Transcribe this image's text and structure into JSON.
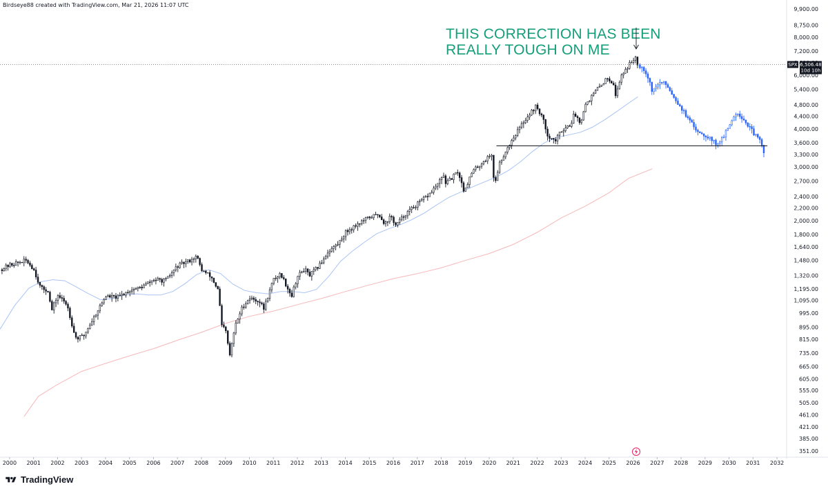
{
  "header": {
    "caption": "Birdseye88 created with TradingView.com, Mar 21, 2026 11:07 UTC"
  },
  "footer": {
    "brand": "TradingView"
  },
  "price_tag": {
    "symbol": "SPX",
    "price": "6,506.48",
    "countdown": "10d 10h",
    "value": 6506.48
  },
  "annotation": {
    "line1": "THIS CORRECTION HAS BEEN",
    "line2": "REALLY TOUGH ON ME"
  },
  "colors": {
    "candle_hist": "#131722",
    "candle_proj": "#2962ff",
    "ma_fast": "#a9c4f5",
    "ma_slow": "#f7b7b9",
    "annotation": "#159e7a",
    "support": "#131722"
  },
  "chart_data": {
    "type": "candlestick",
    "symbol": "SPX",
    "y_scale": "log",
    "ylim": [
      340,
      9900
    ],
    "xlim": [
      1999.6,
      2032.4
    ],
    "y_ticks": [
      "9,900.00",
      "8,750.00",
      "8,000.00",
      "7,200.00",
      "6,600.00",
      "6,000.00",
      "5,400.00",
      "4,800.00",
      "4,400.00",
      "4,000.00",
      "3,600.00",
      "3,300.00",
      "3,000.00",
      "2,700.00",
      "2,400.00",
      "2,200.00",
      "2,000.00",
      "1,800.00",
      "1,640.00",
      "1,480.00",
      "1,320.00",
      "1,195.00",
      "1,095.00",
      "995.00",
      "895.00",
      "815.00",
      "735.00",
      "665.00",
      "605.00",
      "555.00",
      "505.00",
      "461.00",
      "421.00",
      "385.00",
      "351.00"
    ],
    "x_ticks": [
      "2000",
      "2001",
      "2002",
      "2003",
      "2004",
      "2005",
      "2006",
      "2007",
      "2008",
      "2009",
      "2010",
      "2011",
      "2012",
      "2013",
      "2014",
      "2015",
      "2016",
      "2017",
      "2018",
      "2019",
      "2020",
      "2021",
      "2022",
      "2023",
      "2024",
      "2025",
      "2026",
      "2027",
      "2028",
      "2029",
      "2030",
      "2031",
      "2032"
    ],
    "price_path": [
      [
        1999.6,
        1380
      ],
      [
        2000.0,
        1430
      ],
      [
        2000.4,
        1460
      ],
      [
        2000.7,
        1480
      ],
      [
        2001.0,
        1390
      ],
      [
        2001.3,
        1200
      ],
      [
        2001.6,
        1180
      ],
      [
        2001.75,
        1010
      ],
      [
        2002.0,
        1140
      ],
      [
        2002.4,
        1060
      ],
      [
        2002.7,
        850
      ],
      [
        2002.8,
        820
      ],
      [
        2003.1,
        840
      ],
      [
        2003.3,
        900
      ],
      [
        2003.6,
        990
      ],
      [
        2004.0,
        1130
      ],
      [
        2004.5,
        1120
      ],
      [
        2005.0,
        1180
      ],
      [
        2005.5,
        1210
      ],
      [
        2006.0,
        1280
      ],
      [
        2006.5,
        1270
      ],
      [
        2007.0,
        1420
      ],
      [
        2007.5,
        1480
      ],
      [
        2007.8,
        1530
      ],
      [
        2008.0,
        1380
      ],
      [
        2008.4,
        1310
      ],
      [
        2008.7,
        1180
      ],
      [
        2008.85,
        900
      ],
      [
        2009.0,
        880
      ],
      [
        2009.18,
        720
      ],
      [
        2009.4,
        900
      ],
      [
        2009.7,
        1040
      ],
      [
        2010.0,
        1115
      ],
      [
        2010.4,
        1090
      ],
      [
        2010.6,
        1030
      ],
      [
        2011.0,
        1280
      ],
      [
        2011.3,
        1340
      ],
      [
        2011.6,
        1200
      ],
      [
        2011.75,
        1130
      ],
      [
        2012.0,
        1310
      ],
      [
        2012.3,
        1390
      ],
      [
        2012.5,
        1320
      ],
      [
        2012.9,
        1420
      ],
      [
        2013.3,
        1590
      ],
      [
        2013.7,
        1680
      ],
      [
        2014.0,
        1830
      ],
      [
        2014.5,
        1950
      ],
      [
        2015.0,
        2050
      ],
      [
        2015.4,
        2100
      ],
      [
        2015.65,
        1950
      ],
      [
        2015.9,
        2070
      ],
      [
        2016.1,
        1930
      ],
      [
        2016.5,
        2100
      ],
      [
        2016.9,
        2230
      ],
      [
        2017.5,
        2440
      ],
      [
        2017.95,
        2700
      ],
      [
        2018.1,
        2820
      ],
      [
        2018.2,
        2640
      ],
      [
        2018.7,
        2900
      ],
      [
        2018.95,
        2500
      ],
      [
        2019.3,
        2900
      ],
      [
        2019.9,
        3200
      ],
      [
        2020.1,
        3300
      ],
      [
        2020.22,
        2580
      ],
      [
        2020.4,
        3050
      ],
      [
        2020.7,
        3400
      ],
      [
        2021.0,
        3750
      ],
      [
        2021.5,
        4300
      ],
      [
        2021.95,
        4750
      ],
      [
        2022.2,
        4400
      ],
      [
        2022.45,
        3800
      ],
      [
        2022.75,
        3650
      ],
      [
        2023.0,
        3950
      ],
      [
        2023.4,
        4150
      ],
      [
        2023.55,
        4500
      ],
      [
        2023.8,
        4200
      ],
      [
        2024.0,
        4800
      ],
      [
        2024.5,
        5400
      ],
      [
        2024.95,
        5900
      ],
      [
        2025.2,
        5600
      ],
      [
        2025.28,
        5100
      ],
      [
        2025.5,
        6000
      ],
      [
        2025.9,
        6600
      ],
      [
        2026.1,
        6900
      ],
      [
        2026.2,
        6506
      ]
    ],
    "projection_path": [
      [
        2026.2,
        6506
      ],
      [
        2026.45,
        6300
      ],
      [
        2026.65,
        5850
      ],
      [
        2026.8,
        5300
      ],
      [
        2026.95,
        5500
      ],
      [
        2027.15,
        5700
      ],
      [
        2027.4,
        5600
      ],
      [
        2027.7,
        5100
      ],
      [
        2028.0,
        4700
      ],
      [
        2028.3,
        4300
      ],
      [
        2028.6,
        4000
      ],
      [
        2028.9,
        3850
      ],
      [
        2029.2,
        3750
      ],
      [
        2029.45,
        3570
      ],
      [
        2029.7,
        3700
      ],
      [
        2029.95,
        4000
      ],
      [
        2030.15,
        4350
      ],
      [
        2030.35,
        4550
      ],
      [
        2030.6,
        4300
      ],
      [
        2030.85,
        4050
      ],
      [
        2031.1,
        3800
      ],
      [
        2031.3,
        3650
      ],
      [
        2031.45,
        3380
      ]
    ],
    "ma_fast_path": [
      [
        1999.6,
        880
      ],
      [
        2000.2,
        1050
      ],
      [
        2000.8,
        1200
      ],
      [
        2001.3,
        1260
      ],
      [
        2001.8,
        1280
      ],
      [
        2002.3,
        1270
      ],
      [
        2002.8,
        1210
      ],
      [
        2003.3,
        1150
      ],
      [
        2003.8,
        1100
      ],
      [
        2004.3,
        1110
      ],
      [
        2004.8,
        1140
      ],
      [
        2005.3,
        1150
      ],
      [
        2005.8,
        1140
      ],
      [
        2006.3,
        1140
      ],
      [
        2006.8,
        1170
      ],
      [
        2007.3,
        1240
      ],
      [
        2007.8,
        1330
      ],
      [
        2008.3,
        1380
      ],
      [
        2008.8,
        1340
      ],
      [
        2009.3,
        1240
      ],
      [
        2009.8,
        1180
      ],
      [
        2010.3,
        1160
      ],
      [
        2010.8,
        1150
      ],
      [
        2011.3,
        1170
      ],
      [
        2011.8,
        1170
      ],
      [
        2012.3,
        1160
      ],
      [
        2012.8,
        1190
      ],
      [
        2013.3,
        1310
      ],
      [
        2013.8,
        1470
      ],
      [
        2014.3,
        1590
      ],
      [
        2014.8,
        1700
      ],
      [
        2015.3,
        1810
      ],
      [
        2015.8,
        1880
      ],
      [
        2016.3,
        1940
      ],
      [
        2016.8,
        2020
      ],
      [
        2017.3,
        2120
      ],
      [
        2017.8,
        2250
      ],
      [
        2018.3,
        2380
      ],
      [
        2018.8,
        2480
      ],
      [
        2019.3,
        2580
      ],
      [
        2019.8,
        2680
      ],
      [
        2020.3,
        2780
      ],
      [
        2020.8,
        2920
      ],
      [
        2021.3,
        3120
      ],
      [
        2021.8,
        3370
      ],
      [
        2022.3,
        3600
      ],
      [
        2022.8,
        3750
      ],
      [
        2023.3,
        3820
      ],
      [
        2023.8,
        3900
      ],
      [
        2024.3,
        4050
      ],
      [
        2024.8,
        4280
      ],
      [
        2025.3,
        4550
      ],
      [
        2025.8,
        4850
      ],
      [
        2026.2,
        5100
      ]
    ],
    "ma_slow_path": [
      [
        2000.6,
        455
      ],
      [
        2001.2,
        530
      ],
      [
        2002.0,
        580
      ],
      [
        2003.0,
        640
      ],
      [
        2004.0,
        680
      ],
      [
        2005.0,
        720
      ],
      [
        2006.0,
        760
      ],
      [
        2007.0,
        810
      ],
      [
        2008.0,
        860
      ],
      [
        2009.0,
        920
      ],
      [
        2010.0,
        970
      ],
      [
        2011.0,
        1010
      ],
      [
        2012.0,
        1060
      ],
      [
        2013.0,
        1110
      ],
      [
        2014.0,
        1170
      ],
      [
        2015.0,
        1230
      ],
      [
        2016.0,
        1290
      ],
      [
        2017.0,
        1340
      ],
      [
        2018.0,
        1400
      ],
      [
        2019.0,
        1480
      ],
      [
        2020.0,
        1560
      ],
      [
        2021.0,
        1670
      ],
      [
        2022.0,
        1830
      ],
      [
        2023.0,
        2040
      ],
      [
        2024.0,
        2230
      ],
      [
        2025.0,
        2470
      ],
      [
        2025.8,
        2750
      ],
      [
        2026.8,
        2960
      ]
    ],
    "support_level": {
      "value": 3520,
      "x_from": 2020.3,
      "x_to": 2031.6
    },
    "current_price": 6506.48
  }
}
